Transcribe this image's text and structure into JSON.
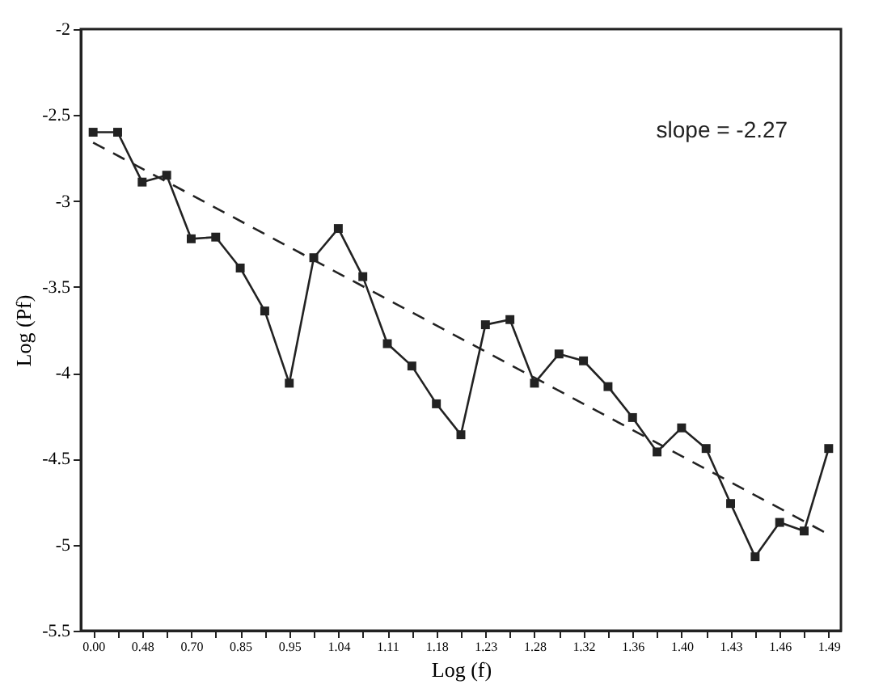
{
  "chart_data": {
    "type": "line",
    "xlabel": "Log (f)",
    "ylabel": "Log (Pf)",
    "annotations": [
      "slope = -2.27"
    ],
    "categories": [
      "0.00",
      null,
      "0.48",
      null,
      "0.70",
      null,
      "0.85",
      null,
      "0.95",
      null,
      "1.04",
      null,
      "1.11",
      null,
      "1.18",
      null,
      "1.23",
      null,
      "1.28",
      null,
      "1.32",
      null,
      "1.36",
      null,
      "1.40",
      null,
      "1.43",
      null,
      "1.46",
      null,
      "1.49"
    ],
    "series": [
      {
        "color": "#222222",
        "marker": "square",
        "line_style": "solid",
        "values": [
          -2.6,
          -2.6,
          -2.89,
          -2.85,
          -3.22,
          -3.21,
          -3.39,
          -3.64,
          -4.06,
          -3.33,
          -3.16,
          -3.44,
          -3.83,
          -3.96,
          -4.18,
          -4.36,
          -3.72,
          -3.69,
          -4.06,
          -3.89,
          -3.93,
          -4.08,
          -4.26,
          -4.46,
          -4.32,
          -4.44,
          -4.76,
          -5.07,
          -4.87,
          -4.92,
          -4.44
        ]
      },
      {
        "type": "line",
        "color": "#222222",
        "marker": "none",
        "line_style": "dashed",
        "x": [
          "0.00",
          "1.49"
        ],
        "values": [
          -2.66,
          -4.94
        ]
      }
    ],
    "ylim": [
      -5.5,
      -2
    ],
    "yticks": [
      -2,
      -2.5,
      -3,
      -3.5,
      -4,
      -4.5,
      -5,
      -5.5
    ],
    "grid": false
  }
}
